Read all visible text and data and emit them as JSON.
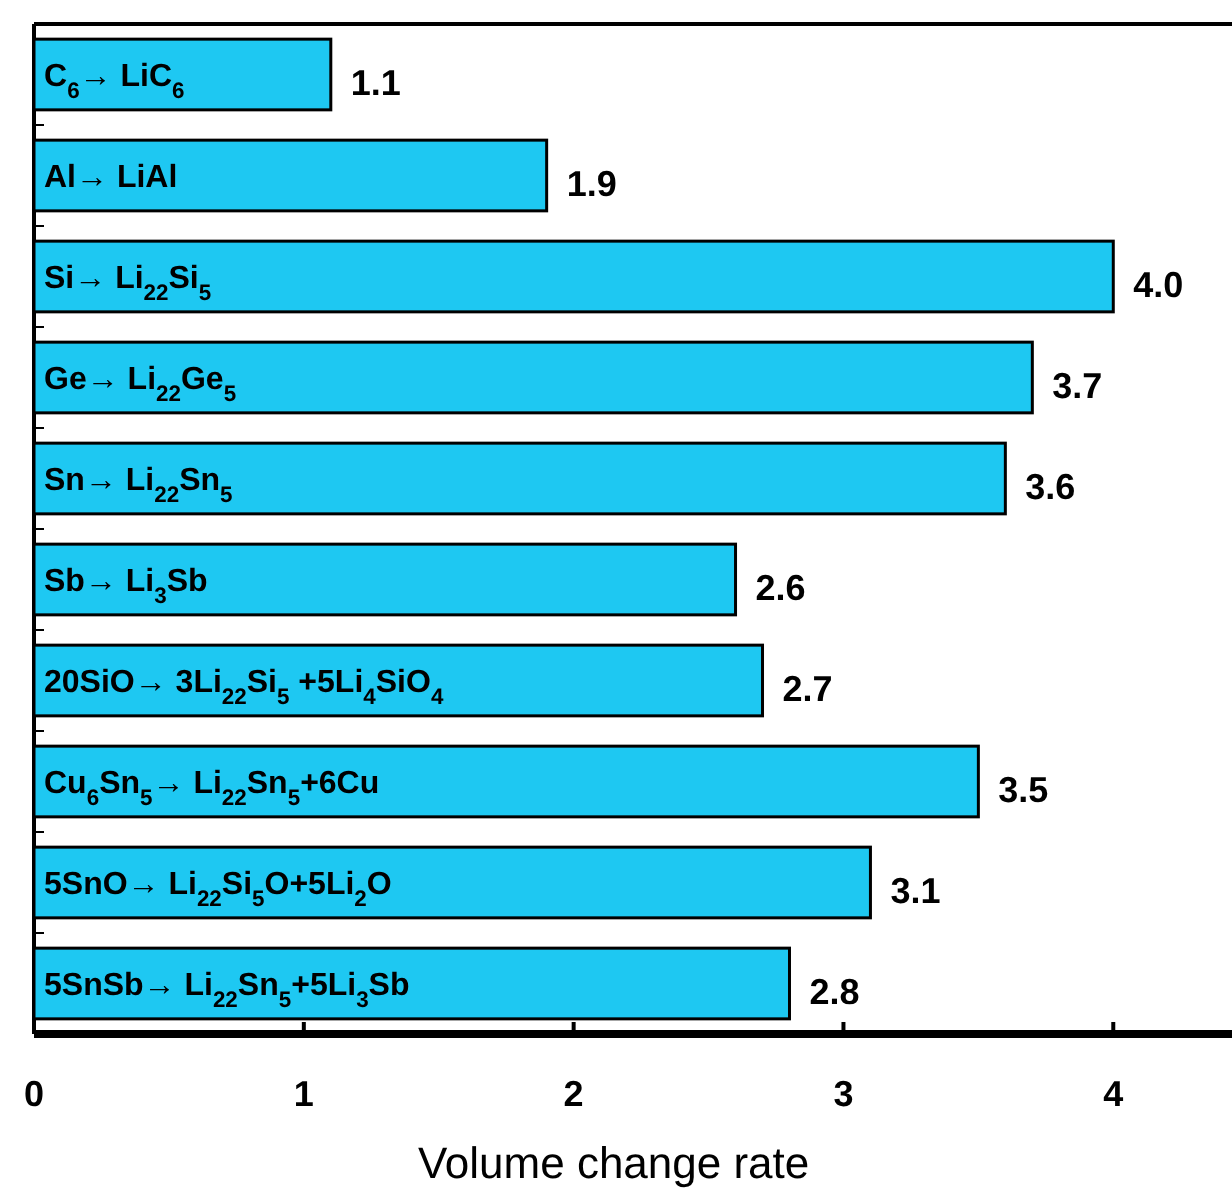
{
  "chart_data": {
    "type": "bar",
    "orientation": "horizontal",
    "xlabel": "Volume change rate",
    "categories": [
      "C$_{6}$→ LiC$_{6}$",
      "Al→ LiAl",
      "Si→ Li$_{22}$Si$_{5}$",
      "Ge→ Li$_{22}$Ge$_{5}$",
      "Sn→ Li$_{22}$Sn$_{5}$",
      "Sb→ Li$_{3}$Sb",
      "20SiO→ 3Li$_{22}$Si$_{5}$ +5Li$_{4}$SiO$_{4}$",
      "Cu$_{6}$Sn$_{5}$→ Li$_{22}$Sn$_{5}$+6Cu",
      "5SnO→ Li$_{22}$Si$_{5}$O+5Li$_{2}$O",
      "5SnSb→ Li$_{22}$Sn$_{5}$+5Li$_{3}$Sb"
    ],
    "values": [
      1.1,
      1.9,
      4.0,
      3.7,
      3.6,
      2.6,
      2.7,
      3.5,
      3.1,
      2.8
    ],
    "value_labels": [
      "1.1",
      "1.9",
      "4.0",
      "3.7",
      "3.6",
      "2.6",
      "2.7",
      "3.5",
      "3.1",
      "2.8"
    ],
    "color": "#1ec8f2",
    "xlim": [
      0,
      4.44
    ],
    "xticks": [
      0,
      1,
      2,
      3,
      4
    ]
  }
}
